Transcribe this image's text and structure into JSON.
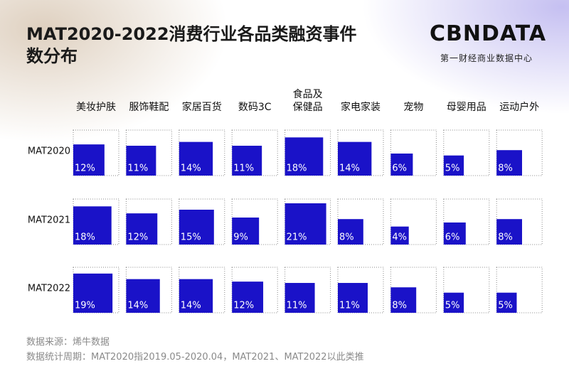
{
  "chart_data": {
    "type": "square",
    "title": "MAT2020-2022消费行业各品类融资事件数分布",
    "brand": "CBNDATA",
    "brand_subtitle": "第一财经商业数据中心",
    "categories": [
      "美妆护肤",
      "服饰鞋配",
      "家居百货",
      "数码3C",
      "食品及\n保健品",
      "家电家装",
      "宠物",
      "母婴用品",
      "运动户外"
    ],
    "series": [
      {
        "name": "MAT2020",
        "color": "#1a12c8",
        "values": [
          12,
          11,
          14,
          11,
          18,
          14,
          6,
          5,
          8
        ],
        "value_labels": [
          "12%",
          "11%",
          "14%",
          "11%",
          "18%",
          "14%",
          "6%",
          "5%",
          "8%"
        ]
      },
      {
        "name": "MAT2021",
        "color": "#1a12c8",
        "values": [
          18,
          12,
          15,
          9,
          21,
          8,
          4,
          6,
          8
        ],
        "value_labels": [
          "18%",
          "12%",
          "15%",
          "9%",
          "21%",
          "8%",
          "4%",
          "6%",
          "8%"
        ]
      },
      {
        "name": "MAT2022",
        "color": "#1a12c8",
        "values": [
          19,
          14,
          14,
          12,
          11,
          11,
          8,
          5,
          5
        ],
        "value_labels": [
          "19%",
          "14%",
          "14%",
          "12%",
          "11%",
          "11%",
          "8%",
          "5%",
          "5%"
        ]
      }
    ],
    "notes": [
      "数据来源：烯牛数据",
      "数据统计周期：MAT2020指2019.05-2020.04，MAT2021、MAT2022以此类推"
    ]
  }
}
